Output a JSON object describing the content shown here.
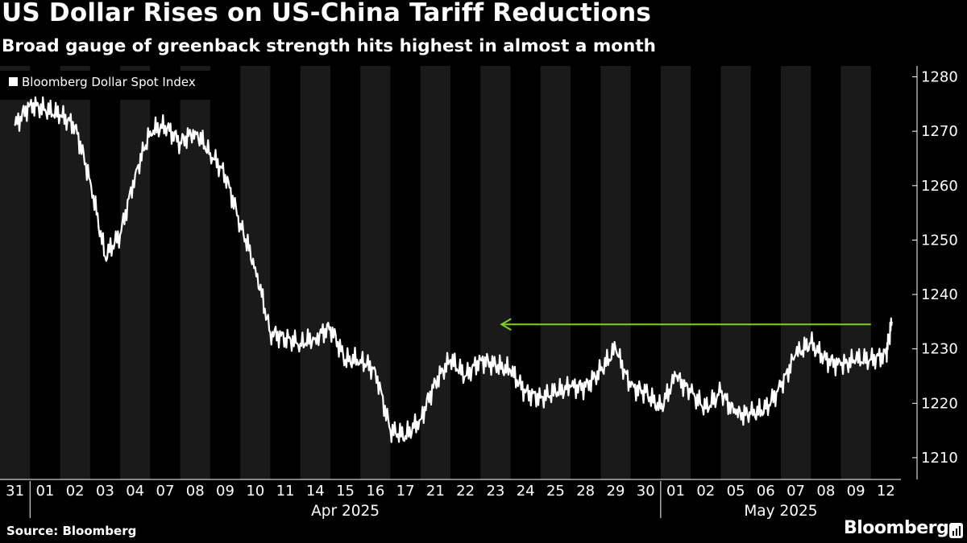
{
  "title": "US Dollar Rises on US-China Tariff Reductions",
  "subtitle": "Broad gauge of greenback strength hits highest in almost a month",
  "source": "Source: Bloomberg",
  "brand": "Bloomberg",
  "colors": {
    "background": "#000000",
    "band": "#1a1a1a",
    "line": "#ffffff",
    "arrow": "#7dd21f"
  },
  "chart_data": {
    "type": "line",
    "title": "US Dollar Rises on US-China Tariff Reductions",
    "subtitle": "Broad gauge of greenback strength hits highest in almost a month",
    "xlabel": "",
    "ylabel": "",
    "ylim": [
      1206,
      1282
    ],
    "y_ticks": [
      1210,
      1220,
      1230,
      1240,
      1250,
      1260,
      1270,
      1280
    ],
    "y_axis_side": "right",
    "grid": false,
    "alternating_day_bands": true,
    "legend": {
      "placement": "top-left",
      "entries": [
        "Bloomberg Dollar Spot Index"
      ]
    },
    "x_tick_labels": [
      "31",
      "01",
      "02",
      "03",
      "04",
      "07",
      "08",
      "09",
      "10",
      "11",
      "14",
      "15",
      "16",
      "17",
      "21",
      "22",
      "23",
      "24",
      "25",
      "28",
      "29",
      "30",
      "01",
      "02",
      "05",
      "06",
      "07",
      "08",
      "09",
      "12"
    ],
    "month_labels": [
      {
        "label": "Apr 2025",
        "start": 1,
        "end": 21
      },
      {
        "label": "May 2025",
        "start": 22,
        "end": 29
      }
    ],
    "series": [
      {
        "name": "Bloomberg Dollar Spot Index",
        "x": [
          0.0,
          0.5,
          1.0,
          1.5,
          2.0,
          2.5,
          3.0,
          3.5,
          4.0,
          4.5,
          5.0,
          5.5,
          6.0,
          6.5,
          7.0,
          7.5,
          8.0,
          8.5,
          9.0,
          9.5,
          10.0,
          10.5,
          11.0,
          11.5,
          12.0,
          12.5,
          13.0,
          13.5,
          14.0,
          14.5,
          15.0,
          15.5,
          16.0,
          16.5,
          17.0,
          17.5,
          18.0,
          18.5,
          19.0,
          19.5,
          20.0,
          20.5,
          21.0,
          21.5,
          22.0,
          22.5,
          23.0,
          23.5,
          24.0,
          24.5,
          25.0,
          25.5,
          26.0,
          26.5,
          27.0,
          27.5,
          28.0,
          28.5,
          29.0,
          29.2
        ],
        "values": [
          1271,
          1275,
          1274,
          1273,
          1271,
          1261,
          1247,
          1251,
          1262,
          1270,
          1271,
          1268,
          1270,
          1266,
          1262,
          1253,
          1245,
          1233,
          1232,
          1231,
          1232,
          1234,
          1228,
          1228,
          1226,
          1215,
          1214,
          1217,
          1224,
          1228,
          1225,
          1228,
          1227,
          1226,
          1222,
          1221,
          1222,
          1223,
          1223,
          1226,
          1230,
          1223,
          1222,
          1219,
          1225,
          1222,
          1219,
          1222,
          1218,
          1218,
          1219,
          1223,
          1229,
          1231,
          1228,
          1227,
          1228,
          1228,
          1229,
          1235
        ]
      }
    ],
    "annotations": [
      {
        "type": "arrow",
        "x_from": 28.5,
        "x_to": 16.2,
        "y": 1234.5
      }
    ]
  }
}
